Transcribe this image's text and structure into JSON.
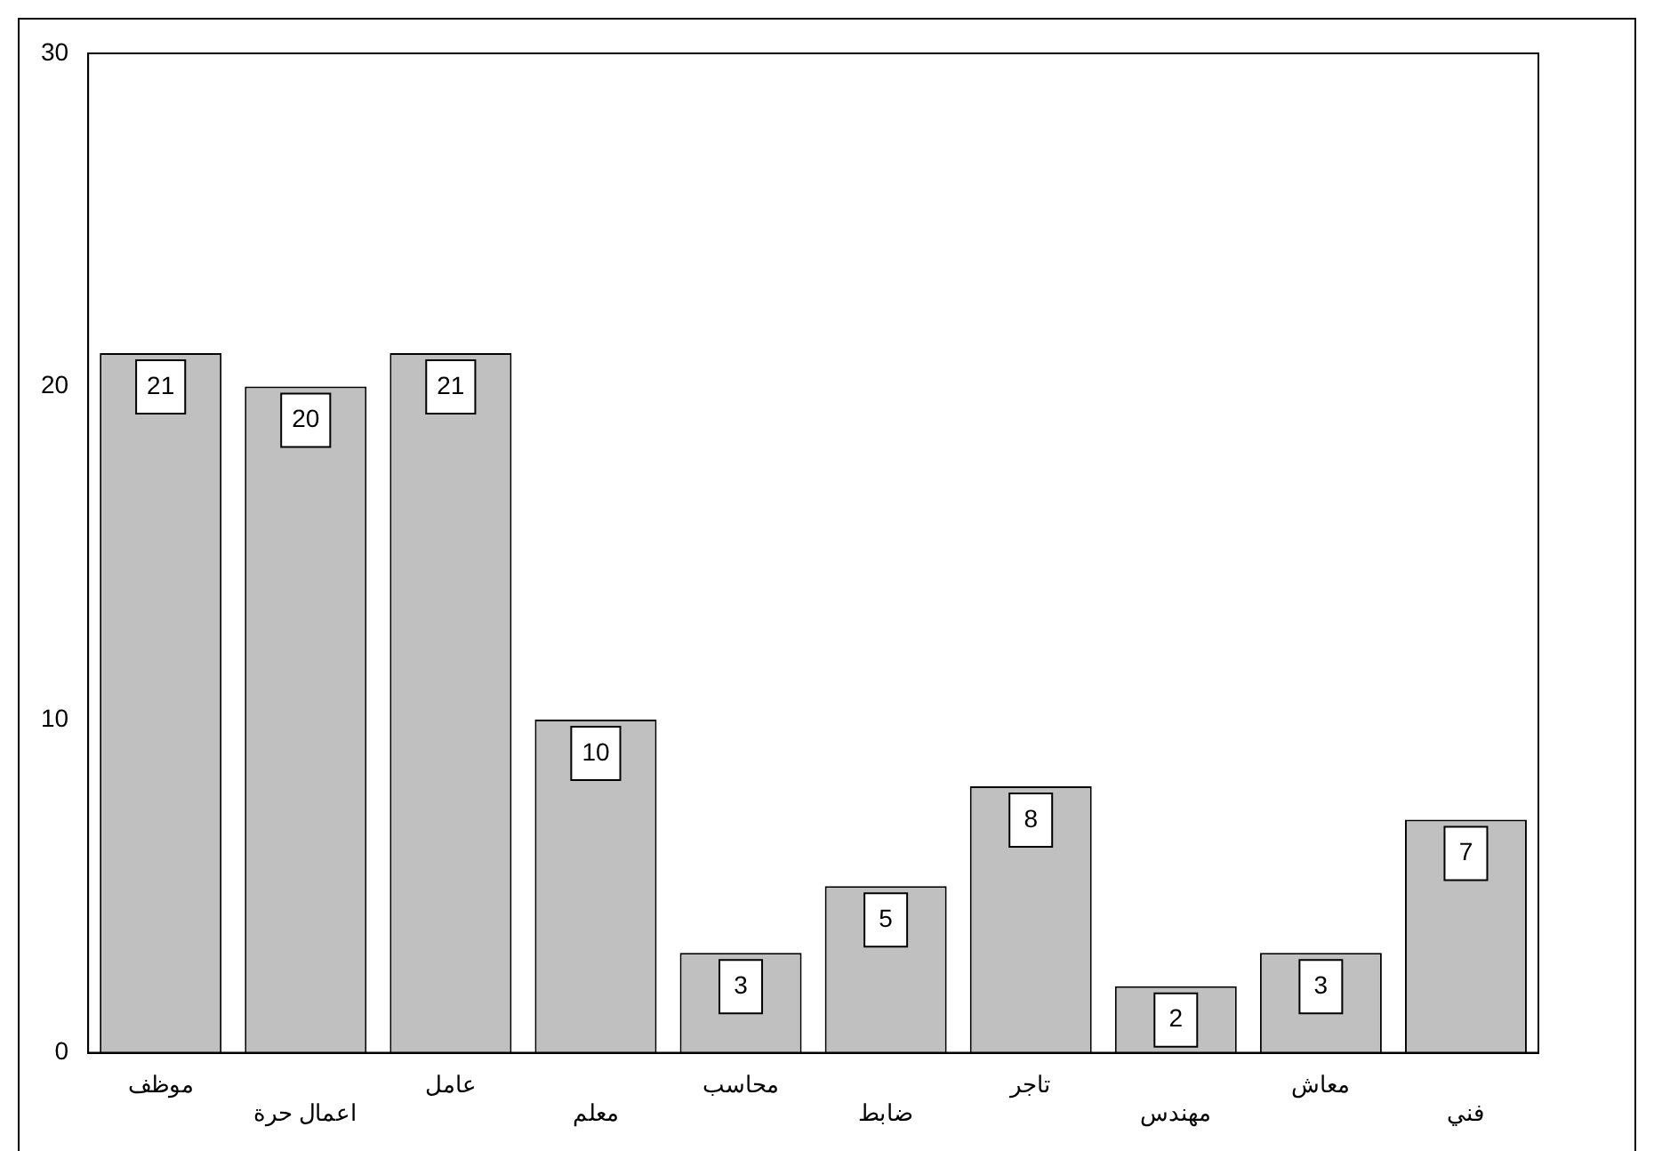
{
  "chart_data": {
    "type": "bar",
    "categories": [
      "موظف",
      "اعمال حرة",
      "عامل",
      "معلم",
      "محاسب",
      "ضابط",
      "تاجر",
      "مهندس",
      "معاش",
      "فني"
    ],
    "values": [
      21,
      20,
      21,
      10,
      3,
      5,
      8,
      2,
      3,
      7
    ],
    "color": "#c0c0c0",
    "ylim": [
      0,
      30
    ],
    "yticks": [
      0,
      10,
      20,
      30
    ],
    "grid": false,
    "legend": false,
    "data_labels": true
  }
}
